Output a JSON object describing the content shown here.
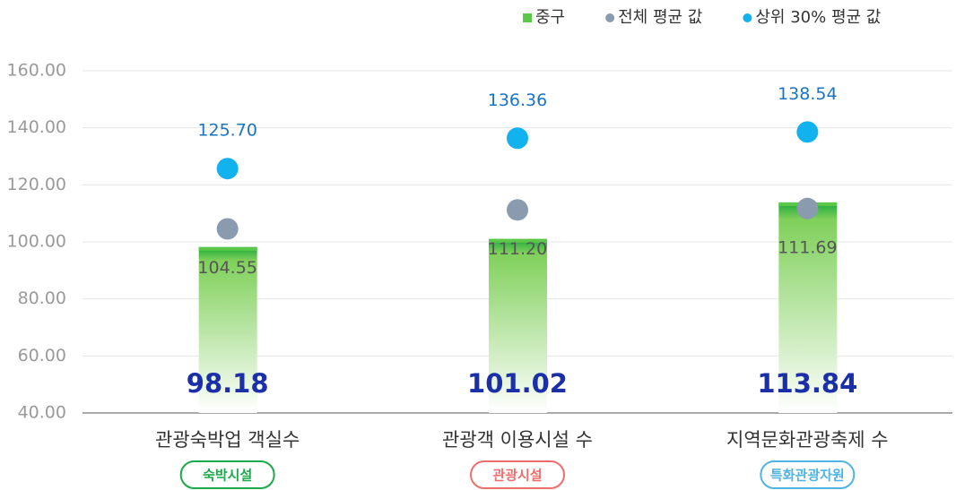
{
  "chart_data": {
    "type": "bar",
    "categories": [
      "관광숙박업 객실수",
      "관광객 이용시설 수",
      "지역문화관광축제 수"
    ],
    "category_tags": [
      "숙박시설",
      "관광시설",
      "특화관광자원"
    ],
    "category_tag_colors": [
      "#1aaa4a",
      "#ef6d6d",
      "#4fb3e6"
    ],
    "series": [
      {
        "name": "중구",
        "color": "#5cc84a",
        "mark": "bar",
        "values": [
          98.18,
          101.02,
          113.84
        ]
      },
      {
        "name": "전체 평균 값",
        "color": "#8a9bb0",
        "mark": "dot",
        "values": [
          104.55,
          111.2,
          111.69
        ],
        "value_labels": [
          "104.55",
          "111.20",
          "111.69"
        ]
      },
      {
        "name": "상위 30% 평균 값",
        "color": "#12b2ee",
        "mark": "dot",
        "values": [
          125.7,
          136.36,
          138.54
        ],
        "value_labels": [
          "125.70",
          "136.36",
          "138.54"
        ]
      }
    ],
    "ylim": [
      40,
      160
    ],
    "yticks": [
      {
        "value": 40,
        "label": "40.00"
      },
      {
        "value": 60,
        "label": "60.00"
      },
      {
        "value": 80,
        "label": "80.00"
      },
      {
        "value": 100,
        "label": "100.00"
      },
      {
        "value": 120,
        "label": "120.00"
      },
      {
        "value": 140,
        "label": "140.00"
      },
      {
        "value": 160,
        "label": "160.00"
      }
    ],
    "grid": true
  }
}
